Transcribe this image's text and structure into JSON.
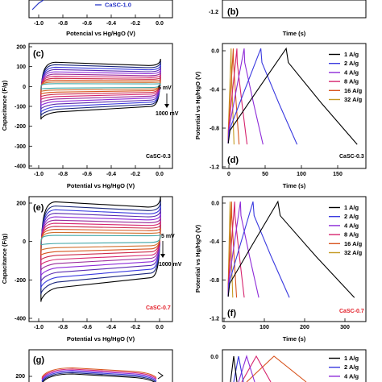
{
  "colors": {
    "s1": "#000000",
    "s2": "#3a3adf",
    "s3": "#8e2bd8",
    "s4": "#d6246e",
    "s5": "#d8541e",
    "s6": "#c49a22",
    "cv_extra": [
      "#18247a",
      "#5a2bb0",
      "#9a2a9a",
      "#cc2a4a",
      "#d07030",
      "#3fa6a6"
    ],
    "red_text": "#e3202a",
    "blue_text": "#2a38c8"
  },
  "panels": {
    "b_label": "(b)",
    "c_label": "(c)",
    "d_label": "(d)",
    "e_label": "(e)",
    "f_label": "(f)",
    "g_label": "(g)"
  },
  "top": {
    "legend_casc10": "CaSC-1.0",
    "x_label_left": "Potencial vs Hg/HgO (V)",
    "x_label_right": "Time (s)",
    "y_tick_right": "-1.2",
    "x_ticks_left": [
      "-1.0",
      "-0.8",
      "-0.6",
      "-0.4",
      "-0.2",
      "0.0"
    ]
  },
  "row_c": {
    "y_label": "Capacitance (F/g)",
    "y_ticks": [
      "200",
      "100",
      "0",
      "-100",
      "-200",
      "-300",
      "-400"
    ],
    "x_ticks": [
      "-1.0",
      "-0.8",
      "-0.6",
      "-0.4",
      "-0.2",
      "0.0"
    ],
    "x_label": "Potential vs Hg/HgO (V)",
    "scan_top": "5 mV",
    "scan_bottom": "1000 mV",
    "sample": "CaSC-0.3"
  },
  "row_d": {
    "y_label": "Potential vs Hg/HgO (V)",
    "y_ticks": [
      "0.0",
      "-0.4",
      "-0.8",
      "-1.2"
    ],
    "x_ticks": [
      "0",
      "50",
      "100",
      "150"
    ],
    "x_label": "Time (s)",
    "sample": "CaSC-0.3",
    "legend": [
      "1 A/g",
      "2 A/g",
      "4 A/g",
      "8 A/g",
      "16 A/g",
      "32 A/g"
    ]
  },
  "row_e": {
    "y_label": "Capacitance (F/g)",
    "y_ticks": [
      "200",
      "0",
      "-200",
      "-400"
    ],
    "x_ticks": [
      "-1.0",
      "-0.8",
      "-0.6",
      "-0.4",
      "-0.2",
      "0.0"
    ],
    "x_label": "Potential vs Hg/HgO (V)",
    "scan_top": "5 mV",
    "scan_bottom": "1000 mV",
    "sample": "CaSC-0.7"
  },
  "row_f": {
    "y_label": "Potential vs Hg/HgO (V)",
    "y_ticks": [
      "0.0",
      "-0.4",
      "-0.8",
      "-1.2"
    ],
    "x_ticks": [
      "0",
      "100",
      "200",
      "300"
    ],
    "x_label": "Time (s)",
    "sample": "CaSC-0.7",
    "legend": [
      "1 A/g",
      "2 A/g",
      "4 A/g",
      "8 A/g",
      "16 A/g",
      "32 A/g"
    ]
  },
  "row_g": {
    "y_tick": "200",
    "right_y_tick": "0.0",
    "legend": [
      "1 A/g",
      "2 A/g",
      "4 A/g"
    ]
  },
  "chart_data": [
    {
      "type": "line",
      "panel": "(c)",
      "subtitle": "CaSC-0.3",
      "xlabel": "Potential vs Hg/HgO (V)",
      "ylabel": "Capacitance (F/g)",
      "xlim": [
        -1.1,
        0.1
      ],
      "ylim": [
        -400,
        200
      ],
      "scan_rates": [
        "5 mV",
        "1000 mV"
      ],
      "series": [
        {
          "top": 110,
          "bottom": -165
        },
        {
          "top": 98,
          "bottom": -148
        },
        {
          "top": 86,
          "bottom": -132
        },
        {
          "top": 75,
          "bottom": -116
        },
        {
          "top": 64,
          "bottom": -100
        },
        {
          "top": 53,
          "bottom": -85
        },
        {
          "top": 43,
          "bottom": -70
        },
        {
          "top": 33,
          "bottom": -56
        },
        {
          "top": 24,
          "bottom": -43
        },
        {
          "top": 15,
          "bottom": -30
        },
        {
          "top": 7,
          "bottom": -18
        }
      ]
    },
    {
      "type": "line",
      "panel": "(d)",
      "subtitle": "CaSC-0.3",
      "xlabel": "Time (s)",
      "ylabel": "Potential vs Hg/HgO (V)",
      "xlim": [
        -8,
        190
      ],
      "ylim": [
        -1.2,
        0.05
      ],
      "series": [
        {
          "name": "1 A/g",
          "peak_time": 80,
          "end_time": 178
        },
        {
          "name": "2 A/g",
          "peak_time": 45,
          "end_time": 95
        },
        {
          "name": "4 A/g",
          "peak_time": 22,
          "end_time": 48
        },
        {
          "name": "8 A/g",
          "peak_time": 12,
          "end_time": 26
        },
        {
          "name": "16 A/g",
          "peak_time": 7,
          "end_time": 15
        },
        {
          "name": "32 A/g",
          "peak_time": 4,
          "end_time": 8
        }
      ]
    },
    {
      "type": "line",
      "panel": "(e)",
      "subtitle": "CaSC-0.7",
      "xlabel": "Potential vs Hg/HgO (V)",
      "ylabel": "Capacitance (F/g)",
      "xlim": [
        -1.1,
        0.1
      ],
      "ylim": [
        -400,
        200
      ],
      "scan_rates": [
        "5 mV",
        "1000 mV"
      ],
      "series": [
        {
          "top": 175,
          "bottom": -305
        },
        {
          "top": 155,
          "bottom": -270
        },
        {
          "top": 137,
          "bottom": -240
        },
        {
          "top": 120,
          "bottom": -210
        },
        {
          "top": 103,
          "bottom": -182
        },
        {
          "top": 87,
          "bottom": -155
        },
        {
          "top": 72,
          "bottom": -130
        },
        {
          "top": 57,
          "bottom": -105
        },
        {
          "top": 43,
          "bottom": -82
        },
        {
          "top": 28,
          "bottom": -58
        },
        {
          "top": 14,
          "bottom": -32
        }
      ]
    },
    {
      "type": "line",
      "panel": "(f)",
      "subtitle": "CaSC-0.7",
      "xlabel": "Time (s)",
      "ylabel": "Potential vs Hg/HgO (V)",
      "xlim": [
        -15,
        360
      ],
      "ylim": [
        -1.2,
        0.05
      ],
      "series": [
        {
          "name": "1 A/g",
          "peak_time": 130,
          "end_time": 330
        },
        {
          "name": "2 A/g",
          "peak_time": 65,
          "end_time": 160
        },
        {
          "name": "4 A/g",
          "peak_time": 32,
          "end_time": 80
        },
        {
          "name": "8 A/g",
          "peak_time": 17,
          "end_time": 42
        },
        {
          "name": "16 A/g",
          "peak_time": 9,
          "end_time": 22
        },
        {
          "name": "32 A/g",
          "peak_time": 5,
          "end_time": 12
        }
      ]
    }
  ]
}
